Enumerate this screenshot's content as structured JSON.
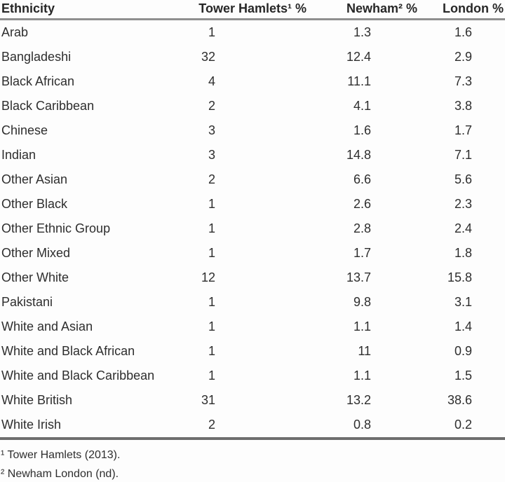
{
  "table": {
    "columns": [
      "Ethnicity",
      "Tower Hamlets¹ %",
      "Newham² %",
      "London %"
    ],
    "rows": [
      {
        "ethnicity": "Arab",
        "tower_hamlets": "1",
        "newham": "1.3",
        "london": "1.6"
      },
      {
        "ethnicity": "Bangladeshi",
        "tower_hamlets": "32",
        "newham": "12.4",
        "london": "2.9"
      },
      {
        "ethnicity": "Black African",
        "tower_hamlets": "4",
        "newham": "11.1",
        "london": "7.3"
      },
      {
        "ethnicity": "Black Caribbean",
        "tower_hamlets": "2",
        "newham": "4.1",
        "london": "3.8"
      },
      {
        "ethnicity": "Chinese",
        "tower_hamlets": "3",
        "newham": "1.6",
        "london": "1.7"
      },
      {
        "ethnicity": "Indian",
        "tower_hamlets": "3",
        "newham": "14.8",
        "london": "7.1"
      },
      {
        "ethnicity": "Other Asian",
        "tower_hamlets": "2",
        "newham": "6.6",
        "london": "5.6"
      },
      {
        "ethnicity": "Other Black",
        "tower_hamlets": "1",
        "newham": "2.6",
        "london": "2.3"
      },
      {
        "ethnicity": "Other Ethnic Group",
        "tower_hamlets": "1",
        "newham": "2.8",
        "london": "2.4"
      },
      {
        "ethnicity": "Other Mixed",
        "tower_hamlets": "1",
        "newham": "1.7",
        "london": "1.8"
      },
      {
        "ethnicity": "Other White",
        "tower_hamlets": "12",
        "newham": "13.7",
        "london": "15.8"
      },
      {
        "ethnicity": "Pakistani",
        "tower_hamlets": "1",
        "newham": "9.8",
        "london": "3.1"
      },
      {
        "ethnicity": "White and Asian",
        "tower_hamlets": "1",
        "newham": "1.1",
        "london": "1.4"
      },
      {
        "ethnicity": "White and Black African",
        "tower_hamlets": "1",
        "newham": "11",
        "london": "0.9"
      },
      {
        "ethnicity": "White and Black Caribbean",
        "tower_hamlets": "1",
        "newham": "1.1",
        "london": "1.5"
      },
      {
        "ethnicity": "White British",
        "tower_hamlets": "31",
        "newham": "13.2",
        "london": "38.6"
      },
      {
        "ethnicity": "White Irish",
        "tower_hamlets": "2",
        "newham": "0.8",
        "london": "0.2"
      }
    ]
  },
  "footnotes": [
    "¹ Tower Hamlets (2013).",
    "² Newham London (nd)."
  ],
  "colors": {
    "text": "#2e2e2e",
    "header_rule": "#8f8f8f",
    "bottom_rule": "#6e6e6e",
    "background": "#fdfdfd"
  }
}
